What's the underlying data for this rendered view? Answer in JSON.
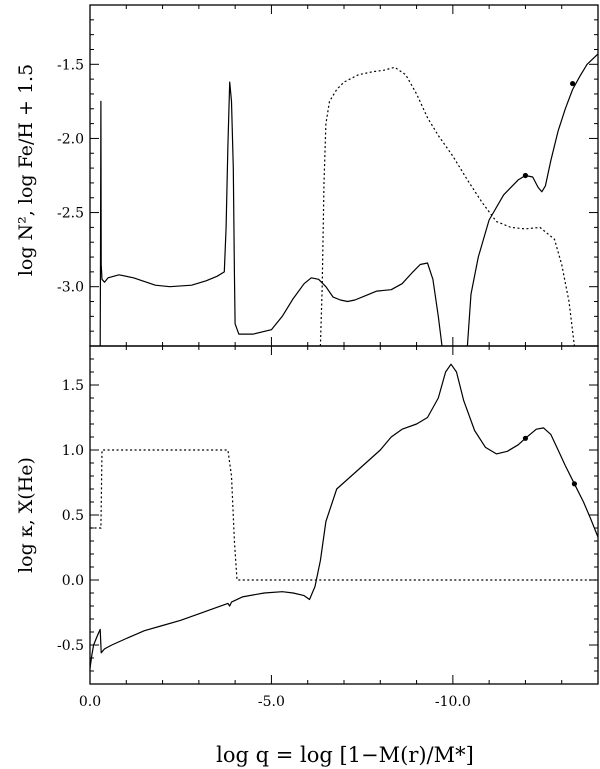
{
  "chart_data": [
    {
      "type": "line",
      "panel": "top",
      "ylabel": "log N², log Fe/H + 1.5",
      "xlim": [
        0.0,
        -14.0
      ],
      "ylim": [
        -3.4,
        -1.1
      ],
      "yticks": [
        -1.5,
        -2.0,
        -2.5,
        -3.0
      ],
      "ytick_labels": [
        "-1.5",
        "-2.0",
        "-2.5",
        "-3.0"
      ],
      "series": [
        {
          "style": "solid",
          "segments": [
            [
              [
                -0.28,
                -3.4
              ],
              [
                -0.29,
                -2.8
              ],
              [
                -0.3,
                -1.75
              ],
              [
                -0.31,
                -2.85
              ],
              [
                -0.33,
                -2.95
              ],
              [
                -0.4,
                -2.97
              ],
              [
                -0.5,
                -2.94
              ],
              [
                -0.8,
                -2.92
              ],
              [
                -1.2,
                -2.94
              ],
              [
                -1.8,
                -2.99
              ],
              [
                -2.2,
                -3.0
              ],
              [
                -2.8,
                -2.99
              ],
              [
                -3.2,
                -2.96
              ],
              [
                -3.5,
                -2.93
              ],
              [
                -3.7,
                -2.9
              ],
              [
                -3.75,
                -2.6
              ],
              [
                -3.8,
                -2.05
              ],
              [
                -3.85,
                -1.62
              ],
              [
                -3.9,
                -1.75
              ],
              [
                -3.95,
                -2.2
              ],
              [
                -3.98,
                -2.9
              ],
              [
                -4.0,
                -3.25
              ],
              [
                -4.1,
                -3.32
              ],
              [
                -4.5,
                -3.32
              ],
              [
                -5.0,
                -3.29
              ],
              [
                -5.3,
                -3.2
              ],
              [
                -5.6,
                -3.08
              ],
              [
                -5.9,
                -2.98
              ],
              [
                -6.1,
                -2.94
              ],
              [
                -6.3,
                -2.95
              ],
              [
                -6.5,
                -3.0
              ],
              [
                -6.7,
                -3.07
              ],
              [
                -6.9,
                -3.09
              ],
              [
                -7.1,
                -3.1
              ],
              [
                -7.3,
                -3.09
              ],
              [
                -7.6,
                -3.06
              ],
              [
                -7.9,
                -3.03
              ],
              [
                -8.3,
                -3.02
              ],
              [
                -8.6,
                -2.98
              ],
              [
                -8.9,
                -2.9
              ],
              [
                -9.1,
                -2.85
              ],
              [
                -9.3,
                -2.84
              ],
              [
                -9.45,
                -2.95
              ],
              [
                -9.6,
                -3.2
              ],
              [
                -9.7,
                -3.4
              ]
            ],
            [
              [
                -10.4,
                -3.4
              ],
              [
                -10.5,
                -3.05
              ],
              [
                -10.7,
                -2.8
              ],
              [
                -11.0,
                -2.55
              ],
              [
                -11.4,
                -2.38
              ],
              [
                -11.8,
                -2.28
              ],
              [
                -12.0,
                -2.25
              ],
              [
                -12.2,
                -2.26
              ],
              [
                -12.35,
                -2.33
              ],
              [
                -12.45,
                -2.36
              ],
              [
                -12.55,
                -2.32
              ],
              [
                -12.7,
                -2.15
              ],
              [
                -12.9,
                -1.95
              ],
              [
                -13.1,
                -1.8
              ],
              [
                -13.3,
                -1.67
              ],
              [
                -13.5,
                -1.58
              ],
              [
                -13.7,
                -1.5
              ],
              [
                -14.0,
                -1.43
              ]
            ]
          ],
          "points": [
            [
              -12.0,
              -2.25
            ],
            [
              -13.3,
              -1.63
            ]
          ]
        },
        {
          "style": "dotted",
          "segments": [
            [
              [
                -6.35,
                -3.4
              ],
              [
                -6.4,
                -3.0
              ],
              [
                -6.45,
                -2.3
              ],
              [
                -6.5,
                -1.9
              ],
              [
                -6.6,
                -1.75
              ],
              [
                -6.8,
                -1.67
              ],
              [
                -7.0,
                -1.62
              ],
              [
                -7.4,
                -1.57
              ],
              [
                -7.8,
                -1.55
              ],
              [
                -8.1,
                -1.54
              ],
              [
                -8.4,
                -1.52
              ],
              [
                -8.7,
                -1.57
              ],
              [
                -9.0,
                -1.7
              ],
              [
                -9.3,
                -1.86
              ],
              [
                -9.6,
                -1.98
              ],
              [
                -10.0,
                -2.12
              ],
              [
                -10.4,
                -2.28
              ],
              [
                -10.8,
                -2.43
              ],
              [
                -11.2,
                -2.56
              ],
              [
                -11.6,
                -2.6
              ],
              [
                -12.0,
                -2.61
              ],
              [
                -12.4,
                -2.6
              ],
              [
                -12.8,
                -2.68
              ],
              [
                -13.0,
                -2.85
              ],
              [
                -13.2,
                -3.1
              ],
              [
                -13.35,
                -3.4
              ]
            ]
          ]
        }
      ]
    },
    {
      "type": "line",
      "panel": "bottom",
      "xlabel": "log q = log [1−M(r)/M*]",
      "ylabel": "log κ, X(He)",
      "xlim": [
        0.0,
        -14.0
      ],
      "ylim": [
        -0.8,
        1.8
      ],
      "yticks": [
        1.5,
        1.0,
        0.5,
        0.0,
        -0.5
      ],
      "ytick_labels": [
        "1.5",
        "1.0",
        "0.5",
        "0.0",
        "-0.5"
      ],
      "xticks": [
        0.0,
        -5.0,
        -10.0
      ],
      "xtick_labels": [
        "0.0",
        "-5.0",
        "-10.0"
      ],
      "series": [
        {
          "style": "solid",
          "segments": [
            [
              [
                0.0,
                -0.68
              ],
              [
                -0.05,
                -0.58
              ],
              [
                -0.1,
                -0.5
              ],
              [
                -0.2,
                -0.43
              ],
              [
                -0.28,
                -0.38
              ],
              [
                -0.31,
                -0.56
              ],
              [
                -0.4,
                -0.53
              ],
              [
                -0.6,
                -0.5
              ],
              [
                -1.0,
                -0.45
              ],
              [
                -1.5,
                -0.39
              ],
              [
                -2.0,
                -0.35
              ],
              [
                -2.5,
                -0.31
              ],
              [
                -3.0,
                -0.26
              ],
              [
                -3.5,
                -0.21
              ],
              [
                -3.8,
                -0.18
              ],
              [
                -3.85,
                -0.2
              ],
              [
                -3.9,
                -0.17
              ],
              [
                -4.2,
                -0.13
              ],
              [
                -4.8,
                -0.1
              ],
              [
                -5.3,
                -0.09
              ],
              [
                -5.6,
                -0.1
              ],
              [
                -5.9,
                -0.12
              ],
              [
                -6.05,
                -0.15
              ],
              [
                -6.2,
                -0.05
              ],
              [
                -6.35,
                0.15
              ],
              [
                -6.5,
                0.45
              ],
              [
                -6.8,
                0.7
              ],
              [
                -7.2,
                0.8
              ],
              [
                -7.6,
                0.9
              ],
              [
                -8.0,
                1.0
              ],
              [
                -8.3,
                1.1
              ],
              [
                -8.6,
                1.16
              ],
              [
                -9.0,
                1.2
              ],
              [
                -9.3,
                1.25
              ],
              [
                -9.6,
                1.4
              ],
              [
                -9.8,
                1.6
              ],
              [
                -9.95,
                1.66
              ],
              [
                -10.1,
                1.6
              ],
              [
                -10.3,
                1.38
              ],
              [
                -10.6,
                1.15
              ],
              [
                -10.9,
                1.02
              ],
              [
                -11.2,
                0.97
              ],
              [
                -11.5,
                0.99
              ],
              [
                -11.8,
                1.04
              ],
              [
                -12.0,
                1.09
              ],
              [
                -12.3,
                1.16
              ],
              [
                -12.5,
                1.17
              ],
              [
                -12.7,
                1.12
              ],
              [
                -12.9,
                1.0
              ],
              [
                -13.1,
                0.88
              ],
              [
                -13.35,
                0.74
              ],
              [
                -13.6,
                0.6
              ],
              [
                -13.8,
                0.47
              ],
              [
                -14.0,
                0.33
              ]
            ]
          ],
          "points": [
            [
              -12.0,
              1.09
            ],
            [
              -13.35,
              0.74
            ]
          ]
        },
        {
          "style": "dotted",
          "segments": [
            [
              [
                0.0,
                0.4
              ],
              [
                -0.3,
                0.4
              ],
              [
                -0.33,
                1.0
              ],
              [
                -3.8,
                1.0
              ],
              [
                -3.9,
                0.8
              ],
              [
                -3.98,
                0.3
              ],
              [
                -4.05,
                0.0
              ],
              [
                -14.0,
                0.0
              ]
            ]
          ]
        }
      ]
    }
  ]
}
